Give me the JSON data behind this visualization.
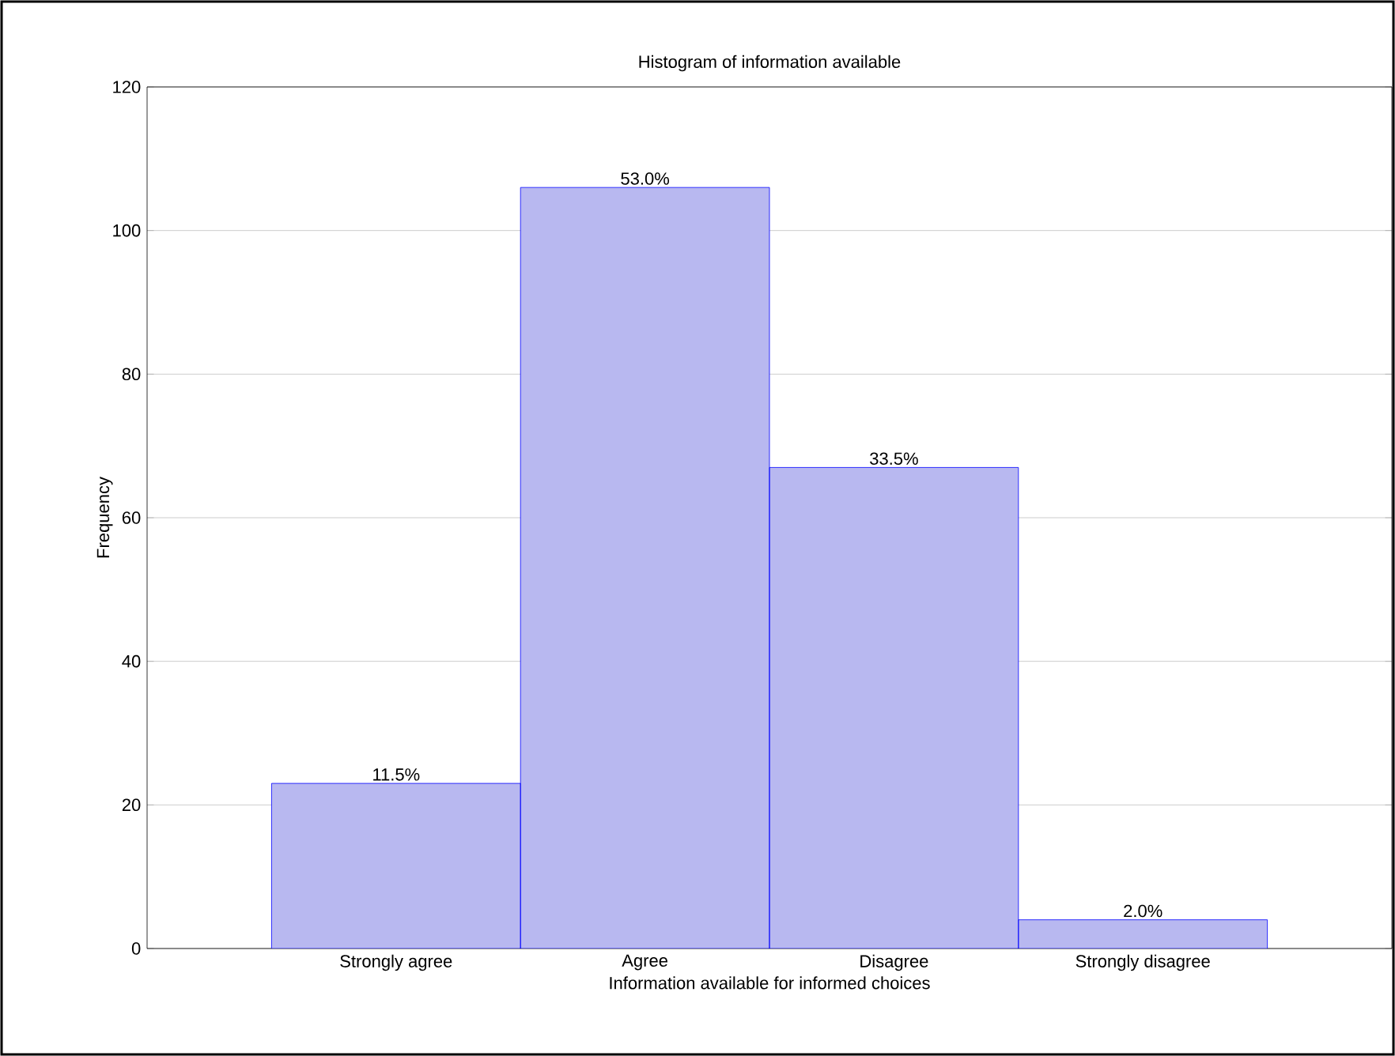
{
  "chart_data": {
    "type": "bar",
    "title": "Histogram of information available",
    "xlabel": "Information available for informed choices",
    "ylabel": "Frequency",
    "categories": [
      "Strongly agree",
      "Agree",
      "Disagree",
      "Strongly disagree"
    ],
    "values": [
      23,
      106,
      67,
      4
    ],
    "annotations": [
      {
        "text": "11.5%",
        "x": "Strongly agree",
        "y": 23
      },
      {
        "text": "53.0%",
        "x": "Agree",
        "y": 106
      },
      {
        "text": "33.5%",
        "x": "Disagree",
        "y": 67
      },
      {
        "text": "2.0%",
        "x": "Strongly disagree",
        "y": 4
      }
    ],
    "color": "#b8b8f0",
    "ylim": [
      0,
      120
    ],
    "yticks": [
      0,
      20,
      40,
      60,
      80,
      100,
      120
    ],
    "grid": "y"
  }
}
